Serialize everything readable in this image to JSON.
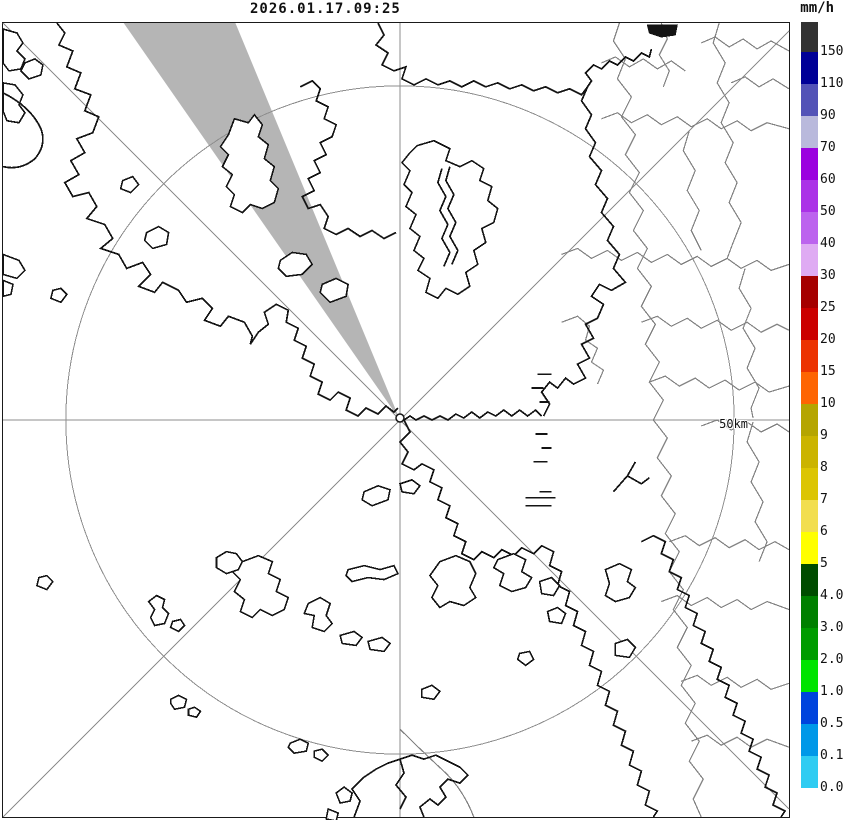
{
  "header": {
    "timestamp": "2026.01.17.09:25"
  },
  "map": {
    "range_label": "50km",
    "background": "#ffffff",
    "coast_color": "#141414",
    "boundary_color": "#828282",
    "radar_line_color": "#8e8e8e",
    "blockage_color": "#b5b5b5"
  },
  "legend": {
    "unit": "mm/h",
    "segments": [
      {
        "color": "#323232",
        "label": "150"
      },
      {
        "color": "#000097",
        "label": "110"
      },
      {
        "color": "#5353b7",
        "label": "90"
      },
      {
        "color": "#b9b9dc",
        "label": "70"
      },
      {
        "color": "#9b01df",
        "label": "60"
      },
      {
        "color": "#ab32e7",
        "label": "50"
      },
      {
        "color": "#bc63ee",
        "label": "40"
      },
      {
        "color": "#dfabf3",
        "label": "30"
      },
      {
        "color": "#a50000",
        "label": "25"
      },
      {
        "color": "#cb0000",
        "label": "20"
      },
      {
        "color": "#ec3301",
        "label": "15"
      },
      {
        "color": "#fe6502",
        "label": "10"
      },
      {
        "color": "#b5a501",
        "label": "9"
      },
      {
        "color": "#cbb400",
        "label": "8"
      },
      {
        "color": "#dcc503",
        "label": "7"
      },
      {
        "color": "#f2de4f",
        "label": "6"
      },
      {
        "color": "#ffff00",
        "label": "5"
      },
      {
        "color": "#004c00",
        "label": "4.0"
      },
      {
        "color": "#008000",
        "label": "3.0"
      },
      {
        "color": "#009c00",
        "label": "2.0"
      },
      {
        "color": "#00e400",
        "label": "1.0"
      },
      {
        "color": "#0044dd",
        "label": "0.5"
      },
      {
        "color": "#0098e8",
        "label": "0.1"
      },
      {
        "color": "#2fccf2",
        "label": "0.0"
      },
      {
        "color": "#ffffff",
        "label": ""
      }
    ]
  }
}
